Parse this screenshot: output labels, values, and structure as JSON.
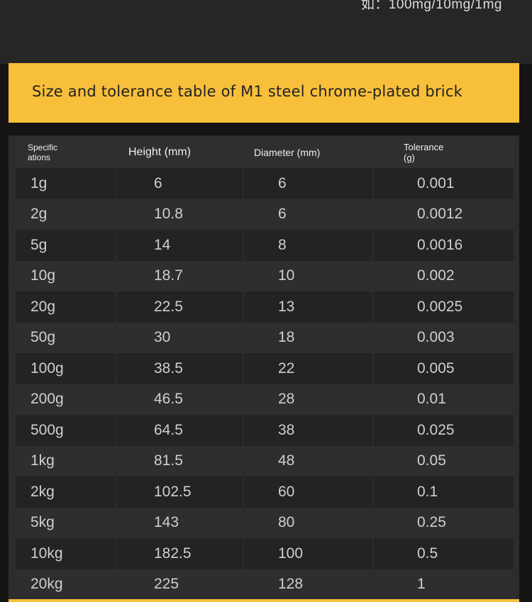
{
  "top_note": "如：100mg/10mg/1mg",
  "banner": {
    "title": "Size and tolerance table of M1 steel chrome-plated brick"
  },
  "table": {
    "headers": [
      "Specific\nations",
      "Height (mm)",
      "Diameter (mm)",
      "Tolerance\n(g)"
    ],
    "rows": [
      [
        "1g",
        "6",
        "6",
        "0.001"
      ],
      [
        "2g",
        "10.8",
        "6",
        "0.0012"
      ],
      [
        "5g",
        "14",
        "8",
        "0.0016"
      ],
      [
        "10g",
        "18.7",
        "10",
        "0.002"
      ],
      [
        "20g",
        "22.5",
        "13",
        "0.0025"
      ],
      [
        "50g",
        "30",
        "18",
        "0.003"
      ],
      [
        "100g",
        "38.5",
        "22",
        "0.005"
      ],
      [
        "200g",
        "46.5",
        "28",
        "0.01"
      ],
      [
        "500g",
        "64.5",
        "38",
        "0.025"
      ],
      [
        "1kg",
        "81.5",
        "48",
        "0.05"
      ],
      [
        "2kg",
        "102.5",
        "60",
        "0.1"
      ],
      [
        "5kg",
        "143",
        "80",
        "0.25"
      ],
      [
        "10kg",
        "182.5",
        "100",
        "0.5"
      ],
      [
        "20kg",
        "225",
        "128",
        "1"
      ]
    ]
  },
  "colors": {
    "accent": "#f8bf3a",
    "background": "#141414",
    "row_dark": "#232323",
    "row_light": "#2e2e2e"
  }
}
